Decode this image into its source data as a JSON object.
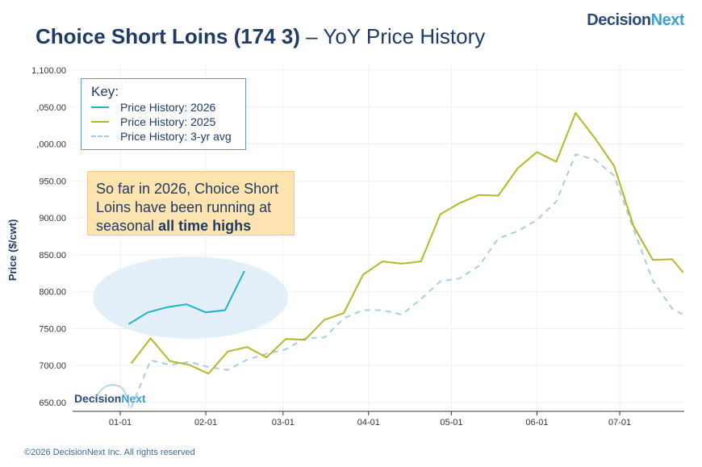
{
  "title": {
    "bold": "Choice Short Loins (174 3)",
    "rest": " – YoY Price History"
  },
  "logo": {
    "part1": "Decision",
    "part2": "Next"
  },
  "footer": "©2026 DecisionNext Inc. All rights reserved",
  "callout": {
    "text": "So far in 2026, Choice Short Loins have been running at seasonal ",
    "bold": "all time highs"
  },
  "chart_data": {
    "type": "line",
    "title": "Choice Short Loins (174 3) – YoY Price History",
    "xlabel": "",
    "ylabel": "Price ($/cwt)",
    "ylim": [
      640,
      1105
    ],
    "xlim_day_of_year": [
      -17,
      205
    ],
    "yticks": [
      650,
      700,
      750,
      800,
      850,
      900,
      950,
      1000,
      1050,
      1100
    ],
    "ytick_labels": [
      "650.00",
      "700.00",
      "750.00",
      "800.00",
      "850.00",
      "900.00",
      "950.00",
      ",000.00",
      ",050.00",
      "1,100.00"
    ],
    "xticks_day": [
      0,
      31,
      59,
      90,
      120,
      151,
      181
    ],
    "xtick_labels": [
      "01-01",
      "02-01",
      "03-01",
      "04-01",
      "05-01",
      "06-01",
      "07-01"
    ],
    "grid": true,
    "legend": {
      "title": "Key:",
      "placement": "top-left"
    },
    "series": [
      {
        "name": "Price History: 2026",
        "color": "#1fb3c8",
        "dash": false,
        "days": [
          3,
          10,
          17,
          24,
          31,
          38,
          45
        ],
        "values": [
          756,
          772,
          779,
          783,
          772,
          775,
          828
        ]
      },
      {
        "name": "Price History: 2025",
        "color": "#b5b826",
        "dash": false,
        "days": [
          4,
          11,
          18,
          25,
          32,
          39,
          46,
          53,
          60,
          67,
          74,
          81,
          88,
          95,
          102,
          109,
          116,
          123,
          130,
          137,
          144,
          151,
          158,
          165,
          172,
          179,
          186,
          193,
          200,
          204
        ],
        "values": [
          703,
          737,
          706,
          701,
          689,
          719,
          725,
          711,
          736,
          735,
          762,
          771,
          823,
          841,
          838,
          841,
          905,
          920,
          931,
          930,
          967,
          989,
          976,
          1042,
          1008,
          970,
          889,
          843,
          844,
          826
        ]
      },
      {
        "name": "Price History: 3-yr avg",
        "color": "#a8cde0",
        "dash": true,
        "days": [
          4,
          11,
          18,
          25,
          32,
          39,
          46,
          53,
          60,
          67,
          74,
          81,
          88,
          95,
          102,
          109,
          116,
          123,
          130,
          137,
          144,
          151,
          158,
          165,
          172,
          179,
          186,
          193,
          200,
          204
        ],
        "values": [
          643,
          707,
          701,
          705,
          698,
          694,
          708,
          716,
          722,
          737,
          738,
          764,
          775,
          775,
          769,
          790,
          814,
          818,
          835,
          872,
          882,
          897,
          922,
          986,
          979,
          957,
          885,
          815,
          777,
          769
        ]
      }
    ],
    "annotation": "highlight ellipse around 2026 series"
  }
}
